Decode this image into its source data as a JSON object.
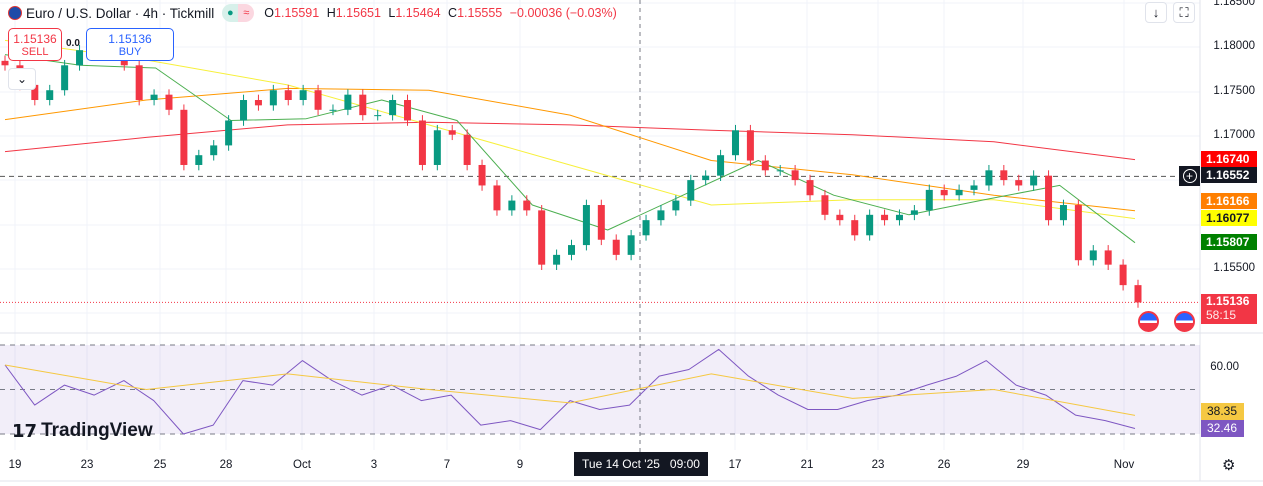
{
  "header": {
    "symbol_title": "Euro / U.S. Dollar · 4h · Tickmill",
    "ohlc": {
      "o_label": "O",
      "o": "1.15591",
      "h_label": "H",
      "h": "1.15651",
      "l_label": "L",
      "l": "1.15464",
      "c_label": "C",
      "c": "1.15555",
      "change": "−0.00036 (−0.03%)"
    },
    "market_status_icon": "dot-icon",
    "data_icon": "approx-icon"
  },
  "trade": {
    "sell_price": "1.15136",
    "sell_label": "SELL",
    "spread": "0.0",
    "buy_price": "1.15136",
    "buy_label": "BUY"
  },
  "toolbar": {
    "scroll_icon": "arrow-down-icon",
    "fullscreen_icon": "fullscreen-icon",
    "settings_icon": "gear-icon"
  },
  "price_axis": [
    "1.18500",
    "1.18000",
    "1.17500",
    "1.17000",
    "1.15500"
  ],
  "price_tags": [
    {
      "label": "1.16740",
      "color": "#ff0000",
      "text": "#ffffff"
    },
    {
      "label": "1.16552",
      "color": "#131722",
      "text": "#ffffff"
    },
    {
      "label": "1.16166",
      "color": "#ff7f00",
      "text": "#ffffff"
    },
    {
      "label": "1.16077",
      "color": "#ffff00",
      "text": "#131722"
    },
    {
      "label": "1.15807",
      "color": "#008000",
      "text": "#ffffff"
    }
  ],
  "last_price": {
    "label": "1.15136",
    "countdown": "58:15",
    "color": "#f23645"
  },
  "rsi_axis": {
    "level": "60.00",
    "ma": "38.35",
    "rsi": "32.46",
    "ma_color": "#f5c842",
    "rsi_color": "#7e57c2"
  },
  "x_axis": [
    "19",
    "23",
    "25",
    "28",
    "Oct",
    "3",
    "7",
    "9",
    "17",
    "21",
    "23",
    "26",
    "29",
    "Nov"
  ],
  "crosshair_label": "Tue 14 Oct '25   09:00",
  "brand": "TradingView",
  "colors": {
    "up": "#089981",
    "down": "#f23645"
  },
  "chart_data": {
    "type": "candlestick",
    "ylim": [
      1.1495,
      1.1853
    ],
    "closes": [
      1.178,
      1.1758,
      1.1741,
      1.1752,
      1.178,
      1.1797,
      1.1803,
      1.1803,
      1.178,
      1.1741,
      1.1747,
      1.173,
      1.1668,
      1.1679,
      1.169,
      1.1718,
      1.1741,
      1.1735,
      1.1752,
      1.1741,
      1.1752,
      1.173,
      1.173,
      1.1747,
      1.1724,
      1.1724,
      1.1741,
      1.1718,
      1.1668,
      1.1707,
      1.1702,
      1.1668,
      1.1645,
      1.1617,
      1.1628,
      1.1617,
      1.1556,
      1.1567,
      1.1578,
      1.1623,
      1.1584,
      1.1567,
      1.1589,
      1.1606,
      1.1617,
      1.1628,
      1.1651,
      1.1656,
      1.1679,
      1.1707,
      1.1673,
      1.1662,
      1.1662,
      1.1651,
      1.1634,
      1.1612,
      1.1606,
      1.1589,
      1.1612,
      1.1606,
      1.1612,
      1.1617,
      1.164,
      1.1634,
      1.164,
      1.1645,
      1.1662,
      1.1651,
      1.1645,
      1.1656,
      1.1606,
      1.1623,
      1.1561,
      1.1572,
      1.1556,
      1.1533,
      1.15136
    ],
    "moving_averages": [
      {
        "color": "#f23645",
        "values": [
          1.1683,
          1.1699,
          1.1713,
          1.1716,
          1.1713,
          1.1707,
          1.1702,
          1.1694,
          1.1674
        ]
      },
      {
        "color": "#ff9800",
        "values": [
          1.1719,
          1.1741,
          1.1754,
          1.1752,
          1.1724,
          1.1673,
          1.1657,
          1.1634,
          1.16166
        ]
      },
      {
        "color": "#f7f03b",
        "values": [
          1.1808,
          1.1786,
          1.1758,
          1.1713,
          1.1668,
          1.1623,
          1.1629,
          1.1629,
          1.16077
        ]
      },
      {
        "color": "#4caf50",
        "values": [
          1.1792,
          1.178,
          1.1777,
          1.1718,
          1.172,
          1.1741,
          1.1718,
          1.1623,
          1.1595,
          1.1634,
          1.1673,
          1.1634,
          1.1612,
          1.1629,
          1.1645,
          1.15807
        ]
      }
    ],
    "hlines": [
      1.16552,
      1.15136
    ],
    "rsi": {
      "levels": [
        70,
        50,
        30
      ],
      "ylim": [
        25,
        72
      ],
      "values": [
        61,
        43,
        52,
        47.5,
        54,
        45,
        30,
        34,
        54,
        52,
        63,
        54,
        47.5,
        52,
        45,
        47.5,
        34,
        36,
        32,
        45,
        41,
        43,
        56,
        59,
        68,
        56,
        47.5,
        41,
        41,
        45,
        47.5,
        52,
        56,
        63,
        52,
        47.5,
        38.5,
        36,
        32.46
      ],
      "ma_values": [
        61,
        50,
        57,
        50,
        44,
        57,
        46,
        50,
        38.35
      ]
    }
  }
}
